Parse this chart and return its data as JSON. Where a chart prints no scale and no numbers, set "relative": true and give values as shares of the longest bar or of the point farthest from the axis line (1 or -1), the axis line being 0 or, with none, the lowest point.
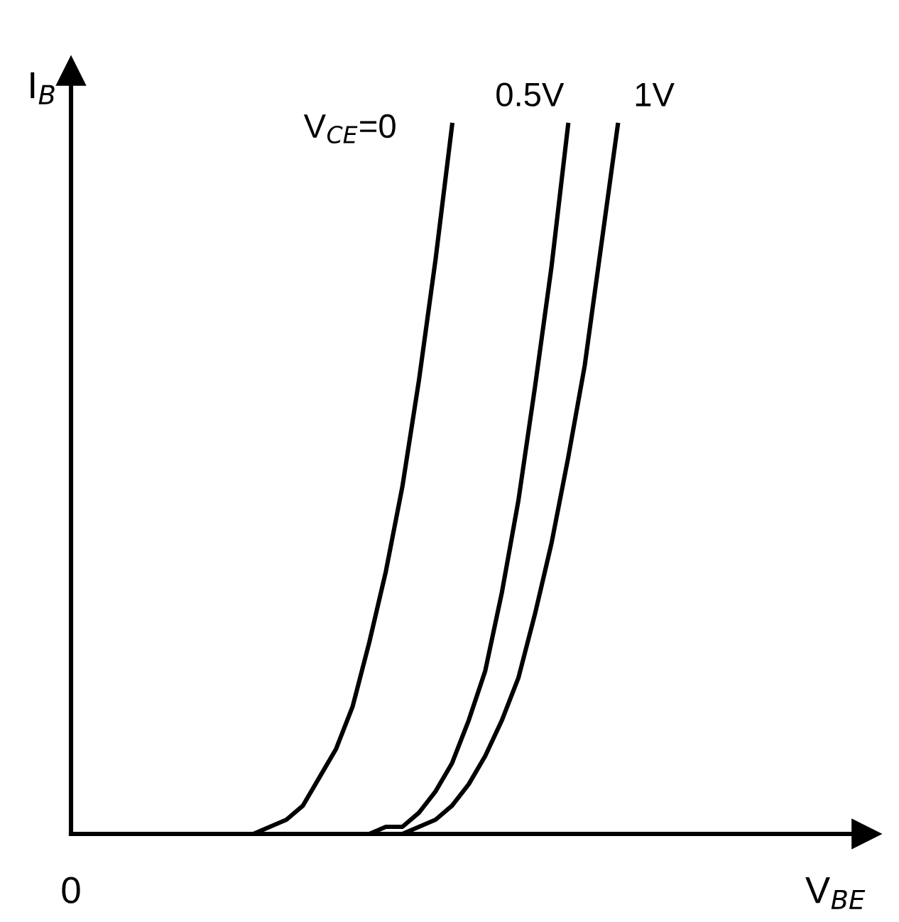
{
  "chart_data": {
    "type": "line",
    "relative": true,
    "xlabel": "V$_{BE}$",
    "ylabel": "I$_{B}$",
    "annotations": [
      "0"
    ],
    "legend": false,
    "marker": "none",
    "line_style": "solid",
    "categories": [
      null,
      null,
      null,
      null,
      null,
      null,
      null,
      null,
      null,
      null,
      null,
      null,
      null,
      null,
      null,
      null,
      null,
      null,
      null,
      null,
      null,
      null,
      null,
      null,
      null,
      null,
      null,
      null,
      null,
      null,
      null,
      null,
      null,
      null,
      null,
      null,
      null,
      null,
      null,
      null,
      null,
      null,
      null,
      null,
      null,
      null,
      null,
      null,
      null
    ],
    "series": [
      {
        "name": "V$_{CE}$=0",
        "color": "#000000",
        "values": [
          null,
          null,
          null,
          null,
          null,
          null,
          null,
          null,
          null,
          null,
          0,
          0,
          0.01,
          0.02,
          0.04,
          0.08,
          0.12,
          0.18,
          0.27,
          0.37,
          0.49,
          0.64,
          0.81,
          1,
          null,
          null,
          null,
          null,
          null,
          null,
          null,
          null,
          null,
          null,
          null,
          null,
          null,
          null,
          null,
          null,
          null,
          null,
          null,
          null,
          null,
          null,
          null,
          null,
          null
        ]
      },
      {
        "name": "0.5V",
        "color": "#000000",
        "values": [
          null,
          null,
          null,
          null,
          null,
          null,
          null,
          null,
          null,
          null,
          null,
          null,
          null,
          null,
          null,
          null,
          null,
          null,
          0,
          0.01,
          0.01,
          0.03,
          0.06,
          0.1,
          0.16,
          0.23,
          0.34,
          0.47,
          0.63,
          0.8,
          1,
          null,
          null,
          null,
          null,
          null,
          null,
          null,
          null,
          null,
          null,
          null,
          null,
          null,
          null,
          null,
          null,
          null,
          null
        ]
      },
      {
        "name": "1V",
        "color": "#000000",
        "values": [
          null,
          null,
          null,
          null,
          null,
          null,
          null,
          null,
          null,
          null,
          null,
          null,
          null,
          null,
          null,
          null,
          null,
          null,
          null,
          0,
          0,
          0.01,
          0.02,
          0.04,
          0.07,
          0.11,
          0.16,
          0.22,
          0.31,
          0.41,
          0.53,
          0.66,
          0.83,
          1,
          null,
          null,
          null,
          null,
          null,
          null,
          null,
          null,
          null,
          null,
          null,
          null,
          null,
          null,
          null
        ]
      }
    ]
  }
}
